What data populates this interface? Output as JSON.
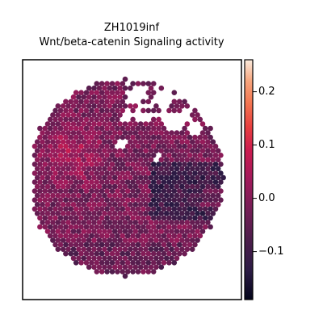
{
  "chart_data": {
    "type": "heatmap",
    "title": "ZH1019inf",
    "subtitle": "Wnt/beta-catenin Signaling activity",
    "colormap": "rocket",
    "vmin": -0.19,
    "vmax": 0.26,
    "colorbar_ticks": [
      {
        "value": 0.2,
        "label": "0.2"
      },
      {
        "value": 0.1,
        "label": "0.1"
      },
      {
        "value": 0.0,
        "label": "0.0"
      },
      {
        "value": -0.1,
        "label": "−0.1"
      }
    ],
    "colors": {
      "frame": "#000000",
      "background": "#ffffff"
    }
  }
}
